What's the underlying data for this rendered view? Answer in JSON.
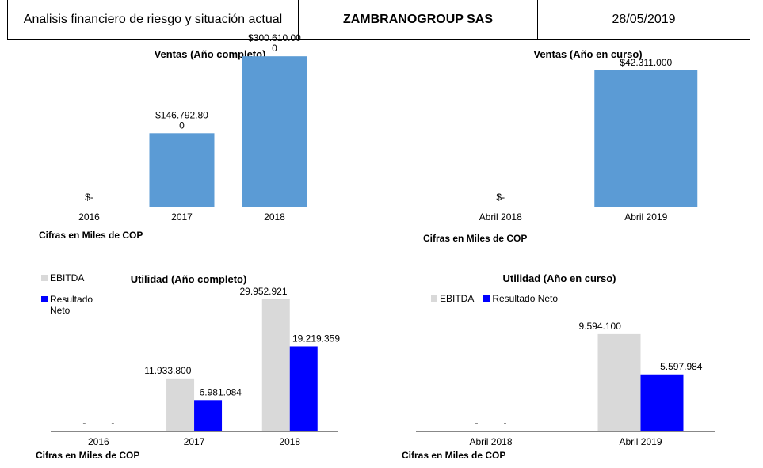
{
  "header": {
    "report_title": "Analisis financiero de riesgo y situación actual",
    "company": "ZAMBRANOGROUP SAS",
    "date": "28/05/2019"
  },
  "colors": {
    "sales_bar": "#5b9bd5",
    "ebitda": "#d9d9d9",
    "net_result": "#0000ff"
  },
  "chart_data": [
    {
      "id": "ventas-completo",
      "type": "bar",
      "title": "Ventas (Año completo)",
      "categories": [
        "2016",
        "2017",
        "2018"
      ],
      "series": [
        {
          "values": [
            0,
            146792800,
            300610000
          ],
          "labels": [
            "$-",
            "$146.792.80\n0",
            "$300.610.00\n0"
          ]
        }
      ],
      "ylim": [
        0,
        350000000
      ],
      "note": "Cifras en Miles de COP"
    },
    {
      "id": "ventas-curso",
      "type": "bar",
      "title": "Ventas (Año en curso)",
      "categories": [
        "Abril 2018",
        "Abril 2019"
      ],
      "series": [
        {
          "values": [
            0,
            42311000
          ],
          "labels": [
            "$-",
            "$42.311.000"
          ]
        }
      ],
      "ylim": [
        0,
        42311000
      ],
      "note": "Cifras en Miles de COP"
    },
    {
      "id": "utilidad-completo",
      "type": "bar",
      "title": "Utilidad (Año completo)",
      "categories": [
        "2016",
        "2017",
        "2018"
      ],
      "series": [
        {
          "name": "EBITDA",
          "values": [
            0,
            11933800,
            29952921
          ],
          "labels": [
            "-",
            "11.933.800",
            "29.952.921"
          ]
        },
        {
          "name": "Resultado Neto",
          "values": [
            0,
            6981084,
            19219359
          ],
          "labels": [
            "-",
            "6.981.084",
            "19.219.359"
          ]
        }
      ],
      "ylim": [
        0,
        35000000
      ],
      "note": "Cifras en Miles de COP"
    },
    {
      "id": "utilidad-curso",
      "type": "bar",
      "title": "Utilidad (Año en curso)",
      "categories": [
        "Abril 2018",
        "Abril 2019"
      ],
      "series": [
        {
          "name": "EBITDA",
          "values": [
            0,
            9594100
          ],
          "labels": [
            "-",
            "9.594.100"
          ]
        },
        {
          "name": "Resultado Neto",
          "values": [
            0,
            5597984
          ],
          "labels": [
            "-",
            "5.597.984"
          ]
        }
      ],
      "ylim": [
        0,
        11000000
      ],
      "note": "Cifras en Miles de COP"
    }
  ]
}
